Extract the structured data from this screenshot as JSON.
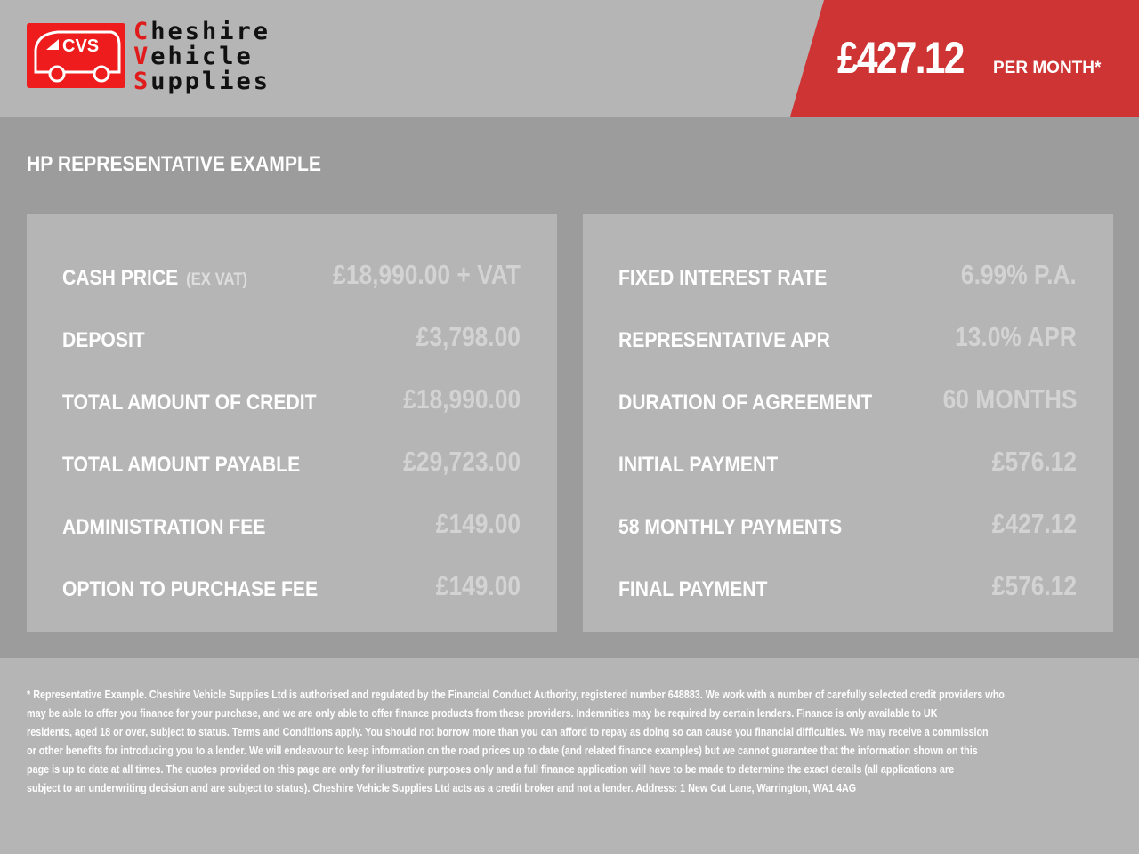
{
  "brand": {
    "logo_badge_text": "CVS",
    "name_lines": [
      {
        "cap": "C",
        "rest": "heshire"
      },
      {
        "cap": "V",
        "rest": "ehicle"
      },
      {
        "cap": "S",
        "rest": "upplies"
      }
    ],
    "accent": "#cf3434"
  },
  "banner": {
    "price": "£427.12",
    "per_month": "PER MONTH*"
  },
  "section_title": "HP REPRESENTATIVE EXAMPLE",
  "left_rows": [
    {
      "label": "CASH PRICE",
      "sub": "(EX VAT)",
      "value": "£18,990.00 + VAT"
    },
    {
      "label": "DEPOSIT",
      "value": "£3,798.00"
    },
    {
      "label": "TOTAL AMOUNT OF CREDIT",
      "value": "£18,990.00"
    },
    {
      "label": "TOTAL AMOUNT PAYABLE",
      "value": "£29,723.00"
    },
    {
      "label": "ADMINISTRATION FEE",
      "value": "£149.00"
    },
    {
      "label": "OPTION TO PURCHASE FEE",
      "value": "£149.00"
    }
  ],
  "right_rows": [
    {
      "label": "FIXED INTEREST RATE",
      "value": "6.99% P.A."
    },
    {
      "label": "REPRESENTATIVE APR",
      "value": "13.0% APR"
    },
    {
      "label": "DURATION OF AGREEMENT",
      "value": "60 MONTHS"
    },
    {
      "label": "INITIAL PAYMENT",
      "value": "£576.12"
    },
    {
      "label": "58 MONTHLY PAYMENTS",
      "value": "£427.12"
    },
    {
      "label": "FINAL PAYMENT",
      "value": "£576.12"
    }
  ],
  "disclaimer": [
    "* Representative Example. Cheshire Vehicle Supplies Ltd is authorised and regulated by the Financial Conduct Authority, registered number 648883. We work with a number of carefully selected credit providers who",
    "may be able to offer you finance for your purchase, and we are only able to offer finance products from these providers. Indemnities may be required by certain lenders. Finance is only available to UK",
    "residents, aged 18 or over, subject to status. Terms and Conditions apply. You should not borrow more than you can afford to repay as doing so can cause you financial difficulties. We may receive a commission",
    "or other benefits for introducing you to a lender. We will endeavour to keep information on the road prices up to date (and related finance examples) but we cannot guarantee that the information shown on this",
    "page is up to date at all times. The quotes provided on this page are only for illustrative purposes only and a full finance application will have to be made to determine the exact details (all applications are",
    "subject to an underwriting decision and are subject to status). Cheshire Vehicle Supplies Ltd acts as a credit broker and not a lender. Address: 1 New Cut Lane, Warrington, WA1 4AG"
  ]
}
